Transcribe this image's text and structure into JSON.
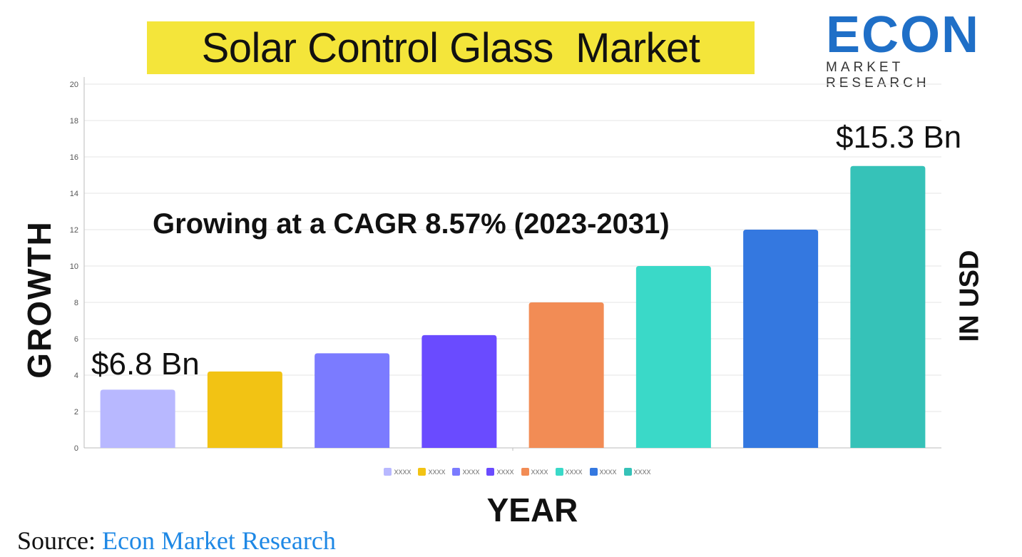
{
  "title": "Solar Control Glass  Market",
  "logo": {
    "word": "ECON",
    "subtitle": "MARKET RESEARCH"
  },
  "y_axis_title": "GROWTH",
  "right_axis_title": "IN USD",
  "x_axis_title": "YEAR",
  "cagr_text": "Growing at a CAGR 8.57% (2023-2031)",
  "annotations": {
    "first": "$6.8 Bn",
    "last": "$15.3 Bn"
  },
  "source": {
    "prefix": "Source:",
    "brand": "Econ Market Research"
  },
  "colors": {
    "title_highlight": "#f4e53a",
    "brand_blue": "#1e88e5"
  },
  "chart_data": {
    "type": "bar",
    "categories": [
      "XXXX",
      "XXXX",
      "XXXX",
      "XXXX",
      "XXXX",
      "XXXX",
      "XXXX",
      "XXXX"
    ],
    "values": [
      3.2,
      4.2,
      5.2,
      6.2,
      8.0,
      10.0,
      12.0,
      15.5
    ],
    "colors": [
      "#b8b8ff",
      "#f2c314",
      "#7b7bff",
      "#6a4bff",
      "#f28c55",
      "#3ad9c8",
      "#3478e0",
      "#36c2b8"
    ],
    "ylim": [
      0,
      20
    ],
    "yticks": [
      0,
      2,
      4,
      6,
      8,
      10,
      12,
      14,
      16,
      18,
      20
    ],
    "grid": true,
    "legend": "bottom"
  }
}
